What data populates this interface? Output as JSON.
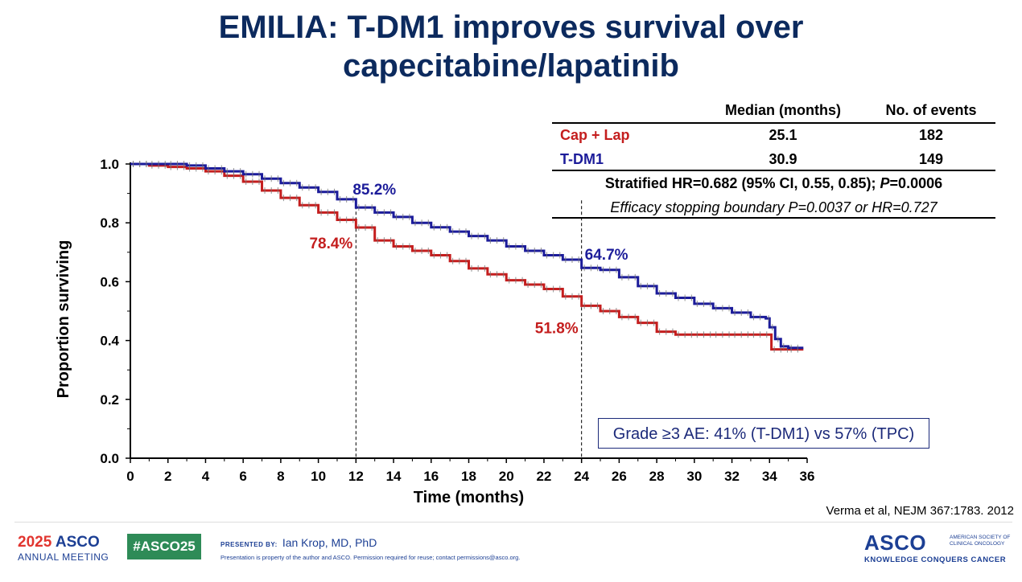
{
  "title": {
    "line1": "EMILIA: T-DM1 improves survival over",
    "line2": "capecitabine/lapatinib"
  },
  "table": {
    "headers": [
      "Median (months)",
      "No. of events"
    ],
    "rows": [
      {
        "arm": "Cap + Lap",
        "median": "25.1",
        "events": "182",
        "color": "#c41e1e"
      },
      {
        "arm": "T-DM1",
        "median": "30.9",
        "events": "149",
        "color": "#1c1c9a"
      }
    ],
    "hr_prefix": "Stratified HR=0.682 (95% CI, 0.55, 0.85); ",
    "hr_p_label": "P",
    "hr_p_value": "=0.0006",
    "boundary": "Efficacy stopping boundary P=0.0037 or HR=0.727"
  },
  "ae_box": "Grade ≥3 AE: 41% (T-DM1) vs 57% (TPC)",
  "citation": "Verma et al, NEJM 367:1783. 2012",
  "footer": {
    "year": "2025",
    "asco": "ASCO",
    "meeting": "ANNUAL MEETING",
    "hashtag": "#ASCO25",
    "presented_label": "PRESENTED BY:",
    "presenter": "Ian Krop, MD, PhD",
    "notice": "Presentation is property of the author and ASCO. Permission required for reuse; contact permissions@asco.org.",
    "org": "ASCO",
    "org_full": "AMERICAN SOCIETY OF CLINICAL ONCOLOGY",
    "tagline": "KNOWLEDGE CONQUERS CANCER"
  },
  "chart_data": {
    "type": "line",
    "xlabel": "Time (months)",
    "ylabel": "Proportion surviving",
    "xlim": [
      0,
      36
    ],
    "ylim": [
      0,
      1.0
    ],
    "x_ticks": [
      "0",
      "2",
      "4",
      "6",
      "8",
      "10",
      "12",
      "14",
      "16",
      "18",
      "20",
      "22",
      "24",
      "26",
      "28",
      "30",
      "32",
      "34",
      "36"
    ],
    "y_ticks": [
      "0.0",
      "0.2",
      "0.4",
      "0.6",
      "0.8",
      "1.0"
    ],
    "reference_lines_x": [
      12,
      24
    ],
    "series": [
      {
        "name": "T-DM1",
        "color": "#1c1c9a",
        "points": [
          [
            0,
            1.0
          ],
          [
            1,
            1.0
          ],
          [
            2,
            1.0
          ],
          [
            3,
            0.995
          ],
          [
            4,
            0.985
          ],
          [
            5,
            0.975
          ],
          [
            6,
            0.965
          ],
          [
            7,
            0.95
          ],
          [
            8,
            0.935
          ],
          [
            9,
            0.92
          ],
          [
            10,
            0.905
          ],
          [
            11,
            0.88
          ],
          [
            12,
            0.852
          ],
          [
            13,
            0.835
          ],
          [
            14,
            0.82
          ],
          [
            15,
            0.8
          ],
          [
            16,
            0.785
          ],
          [
            17,
            0.77
          ],
          [
            18,
            0.755
          ],
          [
            19,
            0.74
          ],
          [
            20,
            0.72
          ],
          [
            21,
            0.705
          ],
          [
            22,
            0.69
          ],
          [
            23,
            0.675
          ],
          [
            24,
            0.647
          ],
          [
            25,
            0.64
          ],
          [
            26,
            0.615
          ],
          [
            27,
            0.585
          ],
          [
            28,
            0.56
          ],
          [
            29,
            0.545
          ],
          [
            30,
            0.525
          ],
          [
            31,
            0.51
          ],
          [
            32,
            0.495
          ],
          [
            33,
            0.48
          ],
          [
            33.8,
            0.475
          ],
          [
            34,
            0.445
          ],
          [
            34.3,
            0.405
          ],
          [
            34.6,
            0.38
          ],
          [
            35,
            0.375
          ],
          [
            35.8,
            0.375
          ]
        ],
        "annotations": [
          {
            "x": 12,
            "label": "85.2%"
          },
          {
            "x": 24,
            "label": "64.7%"
          }
        ]
      },
      {
        "name": "Cap + Lap",
        "color": "#c41e1e",
        "points": [
          [
            0,
            1.0
          ],
          [
            1,
            0.995
          ],
          [
            2,
            0.99
          ],
          [
            3,
            0.985
          ],
          [
            4,
            0.975
          ],
          [
            5,
            0.96
          ],
          [
            6,
            0.94
          ],
          [
            7,
            0.91
          ],
          [
            8,
            0.885
          ],
          [
            9,
            0.86
          ],
          [
            10,
            0.835
          ],
          [
            11,
            0.81
          ],
          [
            12,
            0.784
          ],
          [
            13,
            0.74
          ],
          [
            14,
            0.72
          ],
          [
            15,
            0.705
          ],
          [
            16,
            0.69
          ],
          [
            17,
            0.67
          ],
          [
            18,
            0.645
          ],
          [
            19,
            0.625
          ],
          [
            20,
            0.605
          ],
          [
            21,
            0.59
          ],
          [
            22,
            0.575
          ],
          [
            23,
            0.55
          ],
          [
            24,
            0.518
          ],
          [
            25,
            0.5
          ],
          [
            26,
            0.48
          ],
          [
            27,
            0.46
          ],
          [
            28,
            0.43
          ],
          [
            29,
            0.42
          ],
          [
            30,
            0.42
          ],
          [
            31,
            0.42
          ],
          [
            32,
            0.42
          ],
          [
            33,
            0.42
          ],
          [
            34,
            0.42
          ],
          [
            34.1,
            0.37
          ],
          [
            35,
            0.37
          ],
          [
            35.8,
            0.37
          ]
        ],
        "annotations": [
          {
            "x": 12,
            "label": "78.4%"
          },
          {
            "x": 24,
            "label": "51.8%"
          }
        ]
      }
    ]
  }
}
